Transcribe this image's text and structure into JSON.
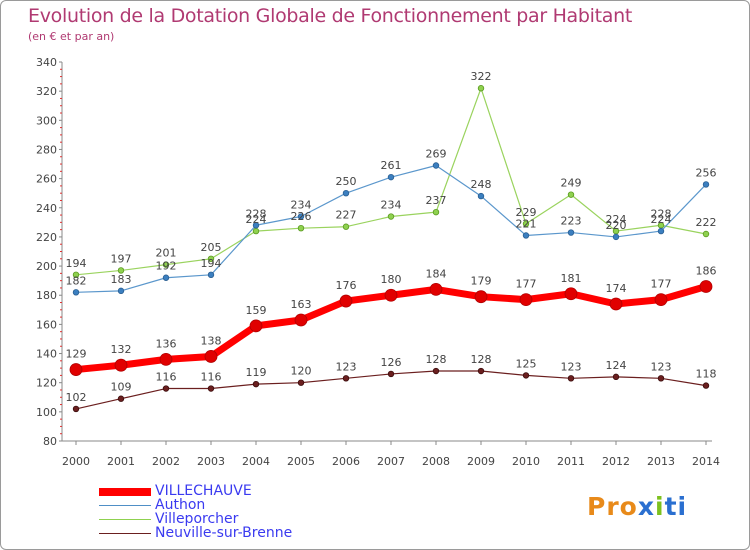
{
  "chart_data": {
    "type": "line",
    "title": "Evolution de la Dotation Globale de Fonctionnement par Habitant",
    "subtitle": "(en € et par an)",
    "x": [
      "2000",
      "2001",
      "2002",
      "2003",
      "2004",
      "2005",
      "2006",
      "2007",
      "2008",
      "2009",
      "2010",
      "2011",
      "2012",
      "2013",
      "2014"
    ],
    "ylim": [
      80,
      340
    ],
    "yticks": [
      80,
      100,
      120,
      140,
      160,
      180,
      200,
      220,
      240,
      260,
      280,
      300,
      320,
      340
    ],
    "grid": false,
    "legend_position": "bottom-left",
    "series": [
      {
        "name": "VILLECHAUVE",
        "color": "#ff0000",
        "values": [
          129,
          132,
          136,
          138,
          159,
          163,
          176,
          180,
          184,
          179,
          177,
          181,
          174,
          177,
          186
        ]
      },
      {
        "name": "Authon",
        "color": "#4f8fc6",
        "values": [
          182,
          183,
          192,
          194,
          228,
          234,
          250,
          261,
          269,
          248,
          221,
          223,
          220,
          224,
          256
        ]
      },
      {
        "name": "Villeporcher",
        "color": "#8fd14f",
        "values": [
          194,
          197,
          201,
          205,
          224,
          226,
          227,
          234,
          237,
          322,
          229,
          249,
          224,
          228,
          222
        ]
      },
      {
        "name": "Neuville-sur-Brenne",
        "color": "#6b1f1f",
        "values": [
          102,
          109,
          116,
          116,
          119,
          120,
          123,
          126,
          128,
          128,
          125,
          123,
          124,
          123,
          118
        ]
      }
    ]
  },
  "legend": {
    "items": [
      {
        "label": "VILLECHAUVE"
      },
      {
        "label": "Authon"
      },
      {
        "label": "Villeporcher"
      },
      {
        "label": "Neuville-sur-Brenne"
      }
    ]
  },
  "logo": {
    "text": "Proxiti",
    "letters": [
      "P",
      "r",
      "o",
      "x",
      "i",
      "t",
      "i"
    ],
    "colors": [
      "#e88a1a",
      "#e88a1a",
      "#e88a1a",
      "#2a6fd0",
      "#7dc11e",
      "#2a6fd0",
      "#2a6fd0"
    ]
  }
}
